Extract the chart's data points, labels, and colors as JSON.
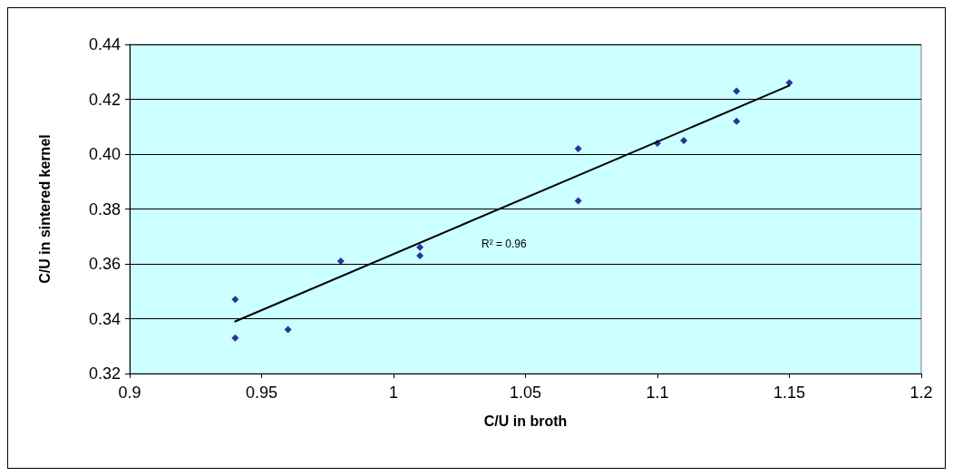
{
  "chart_data": {
    "type": "scatter",
    "xlabel": "C/U in broth",
    "ylabel": "C/U in sintered kernel",
    "series": [
      {
        "color": "#000080",
        "marker": "diamond",
        "x": [
          0.94,
          0.94,
          0.96,
          0.98,
          1.01,
          1.01,
          1.07,
          1.07,
          1.1,
          1.11,
          1.13,
          1.13,
          1.15
        ],
        "values": [
          0.347,
          0.333,
          0.336,
          0.361,
          0.366,
          0.363,
          0.402,
          0.383,
          0.404,
          0.405,
          0.423,
          0.412,
          0.426
        ]
      },
      {
        "type": "line",
        "color": "#000000",
        "marker": "none",
        "line_style": "solid",
        "x": [
          0.94,
          1.15
        ],
        "values": [
          0.339,
          0.425
        ]
      }
    ],
    "annotations": [
      "R² = 0.96"
    ],
    "xlim": [
      0.9,
      1.2
    ],
    "xticks": [
      0.9,
      0.95,
      1,
      1.05,
      1.1,
      1.15,
      1.2
    ],
    "ylim": [
      0.32,
      0.44
    ],
    "yticks": [
      {
        "value": 0.32,
        "label": "0.32"
      },
      {
        "value": 0.34,
        "label": "0.34"
      },
      {
        "value": 0.36,
        "label": "0.36"
      },
      {
        "value": 0.38,
        "label": "0.38"
      },
      {
        "value": 0.4,
        "label": "0.40"
      },
      {
        "value": 0.42,
        "label": "0.42"
      },
      {
        "value": 0.44,
        "label": "0.44"
      }
    ],
    "grid": "y"
  }
}
